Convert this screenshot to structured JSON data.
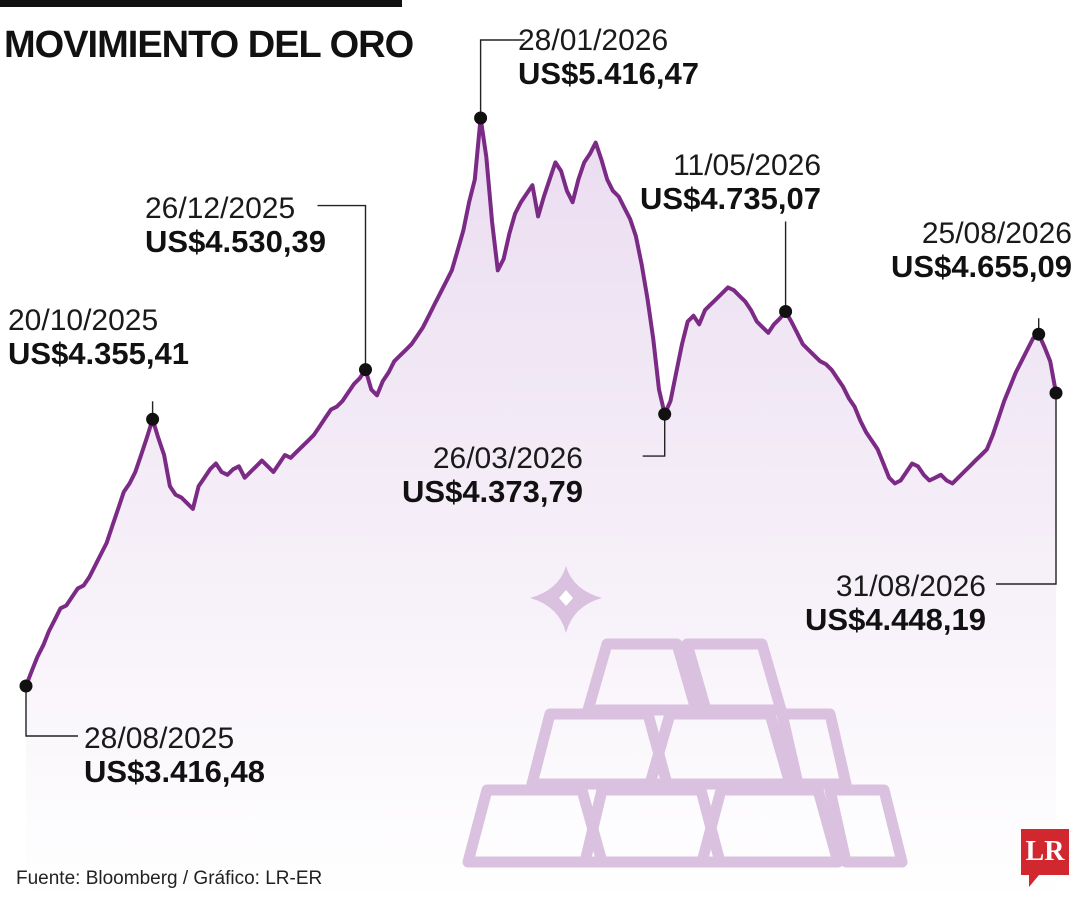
{
  "header": {
    "title": "MOVIMIENTO DEL ORO"
  },
  "footer": {
    "source": "Fuente: Bloomberg / Gráfico: LR-ER",
    "logo_text": "LR"
  },
  "colors": {
    "line": "#7b2a85",
    "area_top": "#eadcf0",
    "area_bottom": "#ffffff",
    "illustration": "#d9c1df",
    "logo": "#d1272f"
  },
  "illustration": {
    "icons": [
      "gold-bars-icon",
      "sparkle-icon"
    ]
  },
  "chart_data": {
    "type": "area",
    "title": "MOVIMIENTO DEL ORO",
    "xlabel": "",
    "ylabel": "",
    "x_range": [
      "28/08/2025",
      "31/08/2026"
    ],
    "y_unit": "US$",
    "grid": false,
    "series": [
      {
        "values": [
          3416.48,
          3470,
          3520,
          3560,
          3610,
          3650,
          3690,
          3700,
          3730,
          3760,
          3770,
          3800,
          3840,
          3880,
          3920,
          3980,
          4040,
          4100,
          4130,
          4170,
          4230,
          4290,
          4355.41,
          4290,
          4230,
          4120,
          4090,
          4080,
          4060,
          4040,
          4120,
          4150,
          4180,
          4200,
          4170,
          4160,
          4180,
          4190,
          4150,
          4170,
          4190,
          4210,
          4190,
          4170,
          4200,
          4230,
          4220,
          4240,
          4260,
          4280,
          4300,
          4330,
          4360,
          4390,
          4400,
          4420,
          4450,
          4480,
          4500,
          4530.39,
          4460,
          4440,
          4490,
          4520,
          4560,
          4580,
          4600,
          4620,
          4650,
          4680,
          4720,
          4760,
          4800,
          4840,
          4880,
          4950,
          5020,
          5120,
          5200,
          5416.47,
          5280,
          5050,
          4880,
          4920,
          5010,
          5080,
          5120,
          5150,
          5180,
          5070,
          5140,
          5200,
          5260,
          5230,
          5160,
          5120,
          5200,
          5260,
          5290,
          5330,
          5270,
          5200,
          5160,
          5140,
          5100,
          5060,
          5000,
          4900,
          4780,
          4640,
          4460,
          4373.79,
          4420,
          4520,
          4620,
          4700,
          4720,
          4690,
          4740,
          4760,
          4780,
          4800,
          4820,
          4810,
          4790,
          4770,
          4740,
          4700,
          4680,
          4660,
          4690,
          4710,
          4735.07,
          4700,
          4660,
          4620,
          4600,
          4580,
          4560,
          4550,
          4530,
          4500,
          4470,
          4430,
          4400,
          4350,
          4310,
          4280,
          4250,
          4200,
          4150,
          4130,
          4140,
          4170,
          4200,
          4190,
          4160,
          4140,
          4150,
          4160,
          4140,
          4130,
          4150,
          4170,
          4190,
          4210,
          4230,
          4250,
          4300,
          4360,
          4420,
          4470,
          4520,
          4560,
          4600,
          4640,
          4655.09,
          4610,
          4560,
          4448.19
        ]
      }
    ],
    "annotations": [
      {
        "date": "28/08/2025",
        "value": 3416.48,
        "label": "US$3.416,48"
      },
      {
        "date": "20/10/2025",
        "value": 4355.41,
        "label": "US$4.355,41"
      },
      {
        "date": "26/12/2025",
        "value": 4530.39,
        "label": "US$4.530,39"
      },
      {
        "date": "28/01/2026",
        "value": 5416.47,
        "label": "US$5.416,47"
      },
      {
        "date": "26/03/2026",
        "value": 4373.79,
        "label": "US$4.373,79"
      },
      {
        "date": "11/05/2026",
        "value": 4735.07,
        "label": "US$4.735,07"
      },
      {
        "date": "25/08/2026",
        "value": 4655.09,
        "label": "US$4.655,09"
      },
      {
        "date": "31/08/2026",
        "value": 4448.19,
        "label": "US$4.448,19"
      }
    ]
  }
}
